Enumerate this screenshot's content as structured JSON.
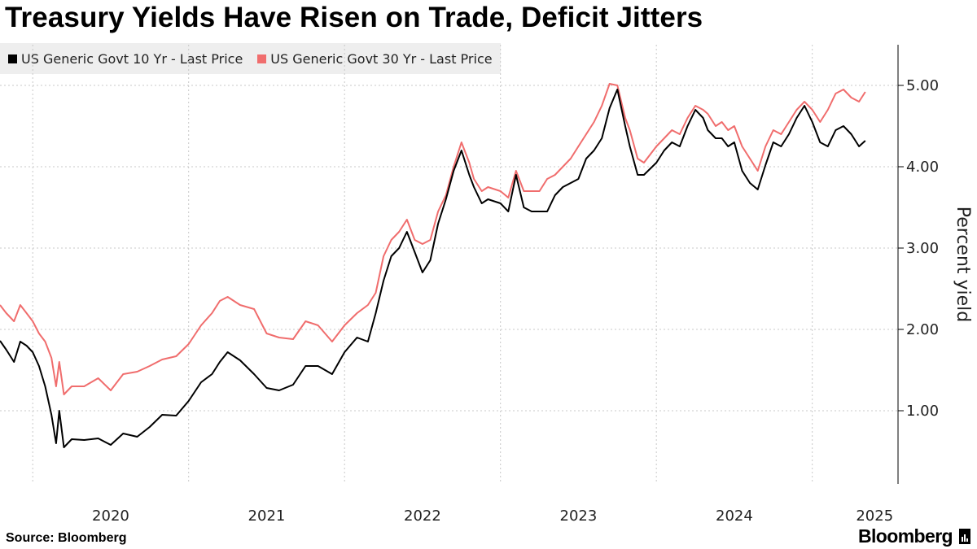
{
  "title": "Treasury Yields Have Risen on Trade, Deficit Jitters",
  "source": "Source: Bloomberg",
  "brand": "Bloomberg",
  "colors": {
    "series10": "#000000",
    "series30": "#f06d6d",
    "grid": "#c8c8c8",
    "legend_bg": "#eeeeee"
  },
  "chart_data": {
    "type": "line",
    "ylabel": "Percent yield",
    "ylim": [
      0.1,
      5.5
    ],
    "yticks": [
      1.0,
      2.0,
      3.0,
      4.0,
      5.0
    ],
    "ytick_labels": [
      "1.00",
      "2.00",
      "3.00",
      "4.00",
      "5.00"
    ],
    "xlim": [
      2019.79,
      2025.55
    ],
    "xgrid": [
      2020.0,
      2021.0,
      2022.0,
      2023.0,
      2024.0,
      2025.0
    ],
    "xtick_labels": [
      {
        "label": "2020",
        "x": 2020.5
      },
      {
        "label": "2021",
        "x": 2021.5
      },
      {
        "label": "2022",
        "x": 2022.5
      },
      {
        "label": "2023",
        "x": 2023.5
      },
      {
        "label": "2024",
        "x": 2024.5
      },
      {
        "label": "2025",
        "x": 2025.4
      }
    ],
    "x": [
      2019.79,
      2019.83,
      2019.88,
      2019.92,
      2019.96,
      2020.0,
      2020.04,
      2020.08,
      2020.12,
      2020.15,
      2020.17,
      2020.2,
      2020.25,
      2020.33,
      2020.42,
      2020.5,
      2020.58,
      2020.67,
      2020.75,
      2020.83,
      2020.92,
      2021.0,
      2021.08,
      2021.15,
      2021.2,
      2021.25,
      2021.33,
      2021.42,
      2021.5,
      2021.58,
      2021.67,
      2021.75,
      2021.83,
      2021.92,
      2022.0,
      2022.08,
      2022.15,
      2022.2,
      2022.25,
      2022.3,
      2022.35,
      2022.4,
      2022.45,
      2022.5,
      2022.55,
      2022.6,
      2022.65,
      2022.7,
      2022.75,
      2022.8,
      2022.83,
      2022.88,
      2022.92,
      2023.0,
      2023.05,
      2023.1,
      2023.15,
      2023.2,
      2023.25,
      2023.3,
      2023.35,
      2023.4,
      2023.45,
      2023.5,
      2023.55,
      2023.6,
      2023.65,
      2023.7,
      2023.75,
      2023.8,
      2023.83,
      2023.88,
      2023.92,
      2024.0,
      2024.05,
      2024.1,
      2024.15,
      2024.2,
      2024.25,
      2024.3,
      2024.33,
      2024.38,
      2024.42,
      2024.46,
      2024.5,
      2024.55,
      2024.6,
      2024.65,
      2024.7,
      2024.75,
      2024.8,
      2024.85,
      2024.9,
      2024.95,
      2025.0,
      2025.05,
      2025.1,
      2025.15,
      2025.2,
      2025.25,
      2025.3,
      2025.34
    ],
    "series": [
      {
        "name": "US Generic Govt 10 Yr - Last Price",
        "values": [
          1.86,
          1.75,
          1.6,
          1.85,
          1.8,
          1.72,
          1.55,
          1.3,
          0.95,
          0.6,
          1.0,
          0.55,
          0.65,
          0.64,
          0.66,
          0.58,
          0.72,
          0.68,
          0.8,
          0.95,
          0.94,
          1.12,
          1.35,
          1.45,
          1.6,
          1.72,
          1.62,
          1.45,
          1.28,
          1.25,
          1.32,
          1.55,
          1.55,
          1.45,
          1.72,
          1.9,
          1.85,
          2.2,
          2.6,
          2.9,
          3.0,
          3.2,
          2.95,
          2.7,
          2.85,
          3.3,
          3.6,
          3.95,
          4.2,
          3.9,
          3.75,
          3.55,
          3.6,
          3.55,
          3.45,
          3.9,
          3.5,
          3.45,
          3.45,
          3.45,
          3.65,
          3.75,
          3.8,
          3.85,
          4.1,
          4.2,
          4.35,
          4.72,
          4.95,
          4.5,
          4.25,
          3.9,
          3.9,
          4.05,
          4.2,
          4.3,
          4.25,
          4.5,
          4.7,
          4.6,
          4.45,
          4.35,
          4.35,
          4.25,
          4.3,
          3.95,
          3.8,
          3.72,
          4.02,
          4.3,
          4.25,
          4.4,
          4.6,
          4.75,
          4.55,
          4.3,
          4.25,
          4.45,
          4.5,
          4.4,
          4.25,
          4.32
        ]
      },
      {
        "name": "US Generic Govt 30 Yr - Last Price",
        "values": [
          2.3,
          2.2,
          2.1,
          2.3,
          2.2,
          2.1,
          1.95,
          1.85,
          1.65,
          1.3,
          1.6,
          1.2,
          1.3,
          1.3,
          1.4,
          1.25,
          1.45,
          1.48,
          1.55,
          1.63,
          1.67,
          1.82,
          2.05,
          2.2,
          2.35,
          2.4,
          2.3,
          2.25,
          1.95,
          1.9,
          1.88,
          2.1,
          2.05,
          1.85,
          2.05,
          2.2,
          2.3,
          2.45,
          2.9,
          3.1,
          3.2,
          3.35,
          3.1,
          3.05,
          3.1,
          3.45,
          3.65,
          4.0,
          4.3,
          4.05,
          3.85,
          3.7,
          3.75,
          3.7,
          3.62,
          3.95,
          3.7,
          3.7,
          3.7,
          3.85,
          3.9,
          4.0,
          4.1,
          4.25,
          4.4,
          4.55,
          4.75,
          5.02,
          5.0,
          4.6,
          4.45,
          4.1,
          4.05,
          4.25,
          4.35,
          4.45,
          4.4,
          4.6,
          4.75,
          4.7,
          4.65,
          4.5,
          4.55,
          4.45,
          4.5,
          4.25,
          4.1,
          3.95,
          4.25,
          4.45,
          4.4,
          4.55,
          4.7,
          4.8,
          4.7,
          4.55,
          4.7,
          4.9,
          4.95,
          4.85,
          4.8,
          4.92
        ]
      }
    ]
  }
}
